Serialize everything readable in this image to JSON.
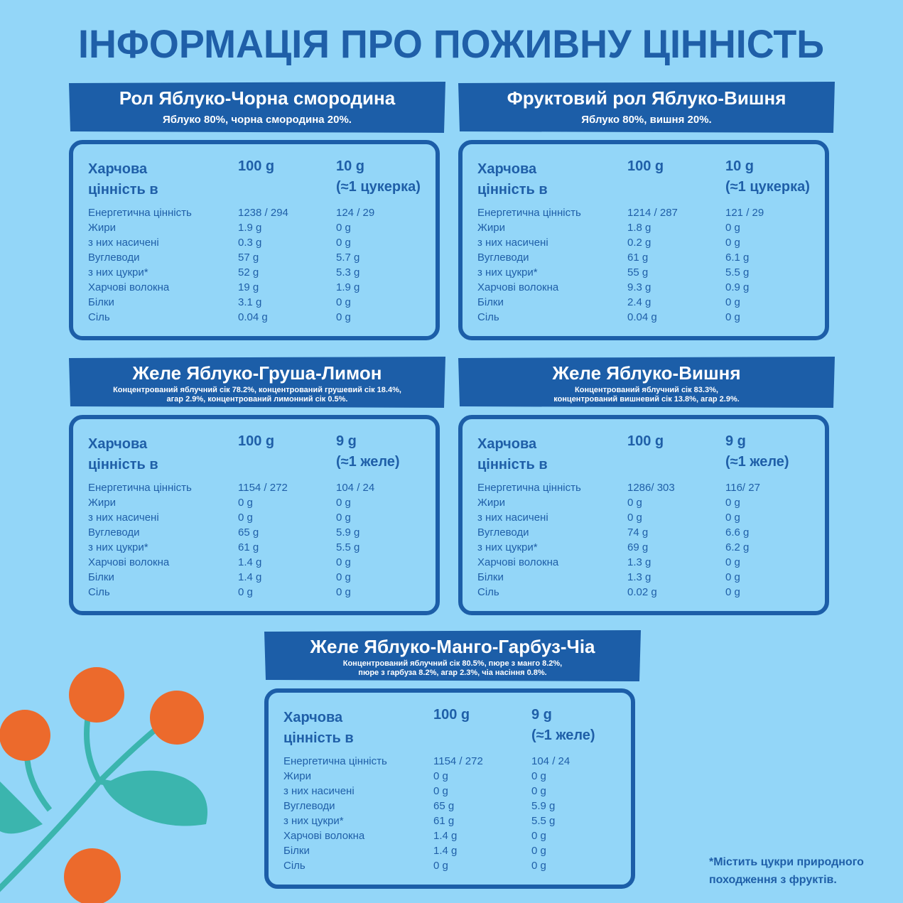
{
  "title": "ІНФОРМАЦІЯ ПРО ПОЖИВНУ ЦІННІСТЬ",
  "products": [
    {
      "name": "Рол Яблуко-Чорна смородина",
      "ingredients": [
        "Яблуко 80%, чорна смородина 20%."
      ],
      "header": {
        "label": [
          "Харчова",
          "цінність в"
        ],
        "col1": "100 g",
        "col2": [
          "10 g",
          "(≈1 цукерка)"
        ]
      },
      "rows": [
        [
          "Енергетична цінність",
          "1238 / 294",
          "124 / 29"
        ],
        [
          "Жири",
          "1.9 g",
          "0 g"
        ],
        [
          "з них насичені",
          "0.3 g",
          "0 g"
        ],
        [
          "Вуглеводи",
          "57 g",
          "5.7 g"
        ],
        [
          "з них цукри*",
          "52 g",
          "5.3 g"
        ],
        [
          "Харчові волокна",
          "19 g",
          "1.9 g"
        ],
        [
          "Білки",
          "3.1 g",
          "0 g"
        ],
        [
          "Сіль",
          "0.04 g",
          "0 g"
        ]
      ]
    },
    {
      "name": "Фруктовий рол Яблуко-Вишня",
      "ingredients": [
        "Яблуко 80%, вишня 20%."
      ],
      "header": {
        "label": [
          "Харчова",
          "цінність в"
        ],
        "col1": "100 g",
        "col2": [
          "10 g",
          "(≈1 цукерка)"
        ]
      },
      "rows": [
        [
          "Енергетична цінність",
          "1214 / 287",
          "121 / 29"
        ],
        [
          "Жири",
          "1.8 g",
          "0 g"
        ],
        [
          "з них насичені",
          "0.2 g",
          "0 g"
        ],
        [
          "Вуглеводи",
          "61 g",
          "6.1 g"
        ],
        [
          "з них цукри*",
          "55 g",
          "5.5 g"
        ],
        [
          "Харчові волокна",
          "9.3 g",
          "0.9 g"
        ],
        [
          "Білки",
          "2.4 g",
          "0 g"
        ],
        [
          "Сіль",
          "0.04 g",
          "0 g"
        ]
      ]
    },
    {
      "name": "Желе Яблуко-Груша-Лимон",
      "ingredients": [
        "Концентрований яблучний сік 78.2%, концентрований грушевий сік 18.4%,",
        "агар 2.9%,  концентрований лимонний сік 0.5%."
      ],
      "header": {
        "label": [
          "Харчова",
          "цінність в"
        ],
        "col1": "100 g",
        "col2": [
          "9 g",
          "(≈1 желе)"
        ]
      },
      "rows": [
        [
          "Енергетична цінність",
          "1154 / 272",
          "104 / 24"
        ],
        [
          "Жири",
          "0 g",
          "0 g"
        ],
        [
          "з них насичені",
          "0 g",
          "0 g"
        ],
        [
          "Вуглеводи",
          "65 g",
          "5.9 g"
        ],
        [
          "з них цукри*",
          "61 g",
          "5.5 g"
        ],
        [
          "Харчові волокна",
          "1.4 g",
          "0 g"
        ],
        [
          "Білки",
          "1.4 g",
          "0 g"
        ],
        [
          "Сіль",
          "0 g",
          "0 g"
        ]
      ]
    },
    {
      "name": "Желе Яблуко-Вишня",
      "ingredients": [
        "Концентрований яблучний сік 83.3%,",
        "концентрований вишневий сік 13.8%, агар 2.9%."
      ],
      "header": {
        "label": [
          "Харчова",
          "цінність в"
        ],
        "col1": "100 g",
        "col2": [
          "9 g",
          "(≈1 желе)"
        ]
      },
      "rows": [
        [
          "Енергетична цінність",
          "1286/ 303",
          "116/ 27"
        ],
        [
          "Жири",
          "0 g",
          "0 g"
        ],
        [
          "з них насичені",
          "0 g",
          "0 g"
        ],
        [
          "Вуглеводи",
          "74 g",
          "6.6 g"
        ],
        [
          "з них цукри*",
          "69 g",
          "6.2 g"
        ],
        [
          "Харчові волокна",
          "1.3 g",
          "0 g"
        ],
        [
          "Білки",
          "1.3 g",
          "0 g"
        ],
        [
          "Сіль",
          "0.02 g",
          "0 g"
        ]
      ]
    },
    {
      "name": "Желе Яблуко-Манго-Гарбуз-Чіа",
      "ingredients": [
        "Концентрований яблучний сік 80.5%, пюре з манго 8.2%,",
        "пюре з гарбуза 8.2%, агар 2.3%, чіа насіння 0.8%."
      ],
      "header": {
        "label": [
          "Харчова",
          "цінність в"
        ],
        "col1": "100 g",
        "col2": [
          "9 g",
          "(≈1 желе)"
        ]
      },
      "rows": [
        [
          "Енергетична цінність",
          "1154 / 272",
          "104 / 24"
        ],
        [
          "Жири",
          "0 g",
          "0 g"
        ],
        [
          "з них насичені",
          "0 g",
          "0 g"
        ],
        [
          "Вуглеводи",
          "65 g",
          "5.9 g"
        ],
        [
          "з них цукри*",
          "61 g",
          "5.5 g"
        ],
        [
          "Харчові волокна",
          "1.4 g",
          "0 g"
        ],
        [
          "Білки",
          "1.4 g",
          "0 g"
        ],
        [
          "Сіль",
          "0 g",
          "0 g"
        ]
      ]
    }
  ],
  "footnote": [
    "*Містить цукри природного",
    "походження з фруктів."
  ]
}
